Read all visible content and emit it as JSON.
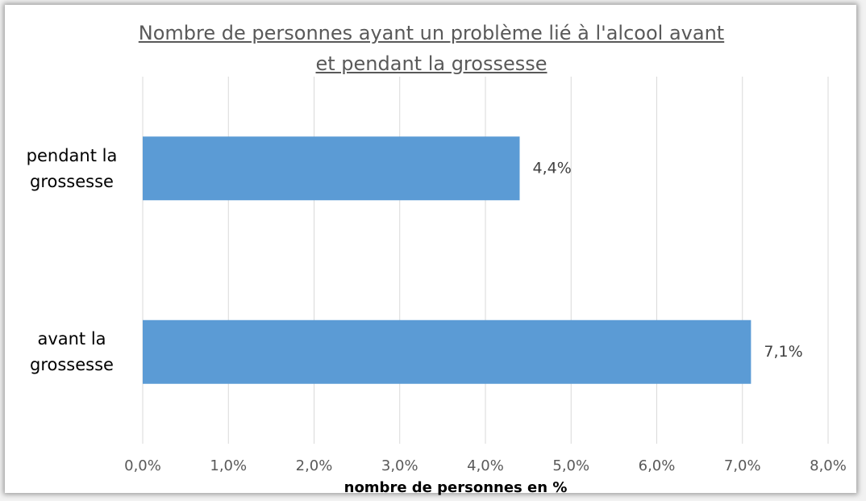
{
  "chart_data": {
    "type": "bar",
    "orientation": "horizontal",
    "title": "Nombre de personnes ayant un problème lié à l'alcool avant et pendant la grossesse",
    "x_label": "nombre de personnes en %",
    "categories": [
      "pendant la grossesse",
      "avant la grossesse"
    ],
    "values": [
      4.4,
      7.1
    ],
    "value_labels": [
      "4,4%",
      "7,1%"
    ],
    "color": "#5b9bd5",
    "xlim": [
      0,
      8
    ],
    "xticks": [
      {
        "value": 0,
        "label": "0,0%"
      },
      {
        "value": 1,
        "label": "1,0%"
      },
      {
        "value": 2,
        "label": "2,0%"
      },
      {
        "value": 3,
        "label": "3,0%"
      },
      {
        "value": 4,
        "label": "4,0%"
      },
      {
        "value": 5,
        "label": "5,0%"
      },
      {
        "value": 6,
        "label": "6,0%"
      },
      {
        "value": 7,
        "label": "7,0%"
      },
      {
        "value": 8,
        "label": "8,0%"
      }
    ],
    "grid": true
  }
}
